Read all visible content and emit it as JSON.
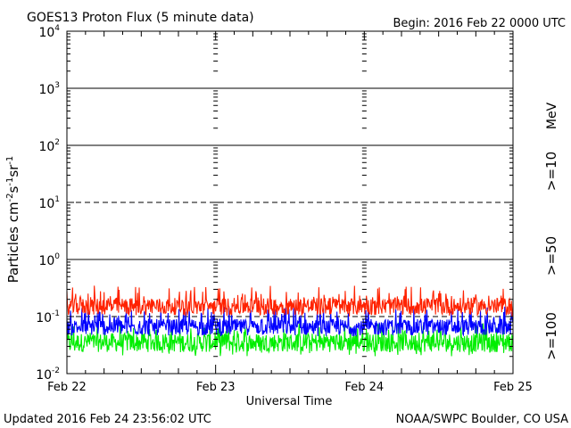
{
  "chart_data": {
    "type": "line",
    "title": "GOES13 Proton Flux (5 minute data)",
    "begin_label": "Begin: 2016 Feb 22 0000 UTC",
    "xlabel": "Universal Time",
    "ylabel": "Particles cm",
    "ylabel_sup1": "-2",
    "ylabel_mid1": "s",
    "ylabel_sup2": "-1",
    "ylabel_mid2": "sr",
    "ylabel_sup3": "-1",
    "x_tick_labels": [
      "Feb 22",
      "Feb 23",
      "Feb 24",
      "Feb 25"
    ],
    "xlim_days": [
      0,
      3
    ],
    "yscale": "log",
    "ylim": [
      0.01,
      10000
    ],
    "y_tick_labels": [
      {
        "base": "10",
        "exp": "-2"
      },
      {
        "base": "10",
        "exp": "-1"
      },
      {
        "base": "10",
        "exp": "0"
      },
      {
        "base": "10",
        "exp": "1"
      },
      {
        "base": "10",
        "exp": "2"
      },
      {
        "base": "10",
        "exp": "3"
      },
      {
        "base": "10",
        "exp": "4"
      }
    ],
    "threshold_lines": [
      {
        "value": 1000,
        "style": "solid"
      },
      {
        "value": 100,
        "style": "solid"
      },
      {
        "value": 10,
        "style": "dashed"
      },
      {
        "value": 1,
        "style": "solid"
      },
      {
        "value": 0.1,
        "style": "dashed"
      }
    ],
    "energy_unit": "MeV",
    "series": [
      {
        "name": ">=10",
        "color": "#ff2200",
        "level_range": [
          0.1,
          0.35
        ],
        "typical": 0.15
      },
      {
        "name": ">=50",
        "color": "#0000ff",
        "level_range": [
          0.045,
          0.15
        ],
        "typical": 0.065
      },
      {
        "name": ">=100",
        "color": "#00ee00",
        "level_range": [
          0.02,
          0.08
        ],
        "typical": 0.035
      }
    ]
  },
  "footer": {
    "updated": "Updated 2016 Feb 24 23:56:02 UTC",
    "source": "NOAA/SWPC Boulder, CO USA"
  }
}
